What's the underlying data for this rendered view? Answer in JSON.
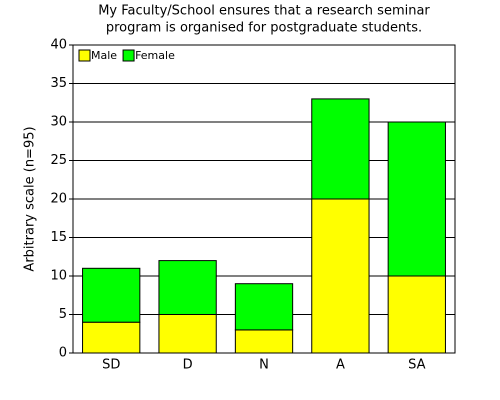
{
  "chart_data": {
    "type": "stacked_bar",
    "title": [
      "My Faculty/School ensures that a research seminar",
      "program is organised for postgraduate students."
    ],
    "y_label": "Arbitrary scale (n=95)",
    "categories": [
      "SD",
      "D",
      "N",
      "A",
      "SA"
    ],
    "series": [
      {
        "name": "Male",
        "color": "#ffff00",
        "values": [
          4,
          5,
          3,
          20,
          10
        ]
      },
      {
        "name": "Female",
        "color": "#00ff00",
        "values": [
          7,
          7,
          6,
          13,
          20
        ]
      }
    ],
    "ylim": [
      0,
      40
    ],
    "yticks": [
      0,
      5,
      10,
      15,
      20,
      25,
      30,
      35,
      40
    ],
    "grid": true,
    "legend": "top-left"
  }
}
